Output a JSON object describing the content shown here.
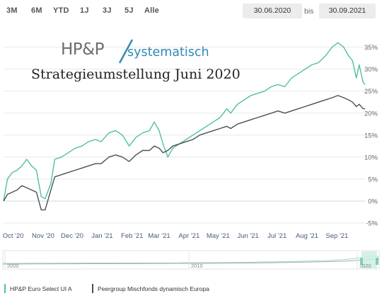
{
  "ranges": [
    "3M",
    "6M",
    "YTD",
    "1J",
    "3J",
    "5J",
    "Alle"
  ],
  "date_from": "30.06.2020",
  "date_sep": "bis",
  "date_to": "30.09.2021",
  "logo": {
    "brand": "HP&P",
    "sub": "systematisch",
    "caption": "Strategieumstellung Juni 2020"
  },
  "colors": {
    "fund": "#4fc0a0",
    "peer": "#4a4f5c",
    "grid": "#e8e8e8"
  },
  "chart_data": {
    "type": "line",
    "title": "",
    "xlabel": "",
    "ylabel": "",
    "x_ticks": [
      "Oct '20",
      "Nov '20",
      "Dec '20",
      "Jan '21",
      "Feb '21",
      "Mar '21",
      "Apr '21",
      "May '21",
      "Jun '21",
      "Jul '21",
      "Aug '21",
      "Sep '21"
    ],
    "y_ticks": [
      "35%",
      "30%",
      "25%",
      "20%",
      "15%",
      "10%",
      "5%",
      "0%",
      "-5%"
    ],
    "ylim": [
      -5,
      38
    ],
    "xlim": [
      "2020-09-21",
      "2021-09-30"
    ],
    "grid": true,
    "series": [
      {
        "name": "HP&P Euro Select UI A",
        "points": [
          [
            "2020-09-21",
            0
          ],
          [
            "2020-09-25",
            5
          ],
          [
            "2020-09-30",
            6.5
          ],
          [
            "2020-10-05",
            7
          ],
          [
            "2020-10-10",
            8
          ],
          [
            "2020-10-15",
            9.5
          ],
          [
            "2020-10-20",
            8
          ],
          [
            "2020-10-25",
            7
          ],
          [
            "2020-10-30",
            1
          ],
          [
            "2020-11-03",
            0.5
          ],
          [
            "2020-11-09",
            4
          ],
          [
            "2020-11-13",
            9.5
          ],
          [
            "2020-11-20",
            10
          ],
          [
            "2020-11-27",
            11
          ],
          [
            "2020-12-04",
            12
          ],
          [
            "2020-12-11",
            12.5
          ],
          [
            "2020-12-18",
            13.5
          ],
          [
            "2020-12-25",
            14
          ],
          [
            "2020-12-31",
            13.5
          ],
          [
            "2021-01-08",
            15.5
          ],
          [
            "2021-01-15",
            16
          ],
          [
            "2021-01-22",
            15
          ],
          [
            "2021-01-29",
            12.5
          ],
          [
            "2021-02-05",
            14.5
          ],
          [
            "2021-02-12",
            15.5
          ],
          [
            "2021-02-19",
            16
          ],
          [
            "2021-02-24",
            18
          ],
          [
            "2021-03-01",
            16
          ],
          [
            "2021-03-05",
            13
          ],
          [
            "2021-03-10",
            10
          ],
          [
            "2021-03-15",
            12
          ],
          [
            "2021-03-22",
            13
          ],
          [
            "2021-03-29",
            14
          ],
          [
            "2021-04-05",
            15
          ],
          [
            "2021-04-12",
            16
          ],
          [
            "2021-04-19",
            17
          ],
          [
            "2021-04-26",
            18
          ],
          [
            "2021-05-03",
            19
          ],
          [
            "2021-05-10",
            21
          ],
          [
            "2021-05-14",
            20
          ],
          [
            "2021-05-21",
            22
          ],
          [
            "2021-05-28",
            23
          ],
          [
            "2021-06-04",
            24
          ],
          [
            "2021-06-11",
            24.5
          ],
          [
            "2021-06-18",
            25
          ],
          [
            "2021-06-25",
            26
          ],
          [
            "2021-07-02",
            26.5
          ],
          [
            "2021-07-09",
            26
          ],
          [
            "2021-07-16",
            28
          ],
          [
            "2021-07-23",
            29
          ],
          [
            "2021-07-30",
            30
          ],
          [
            "2021-08-06",
            31
          ],
          [
            "2021-08-13",
            31.5
          ],
          [
            "2021-08-20",
            33
          ],
          [
            "2021-08-27",
            35
          ],
          [
            "2021-09-02",
            36
          ],
          [
            "2021-09-08",
            35
          ],
          [
            "2021-09-13",
            33
          ],
          [
            "2021-09-17",
            32
          ],
          [
            "2021-09-21",
            28
          ],
          [
            "2021-09-24",
            31
          ],
          [
            "2021-09-28",
            27
          ],
          [
            "2021-09-30",
            26.5
          ]
        ]
      },
      {
        "name": "Peergroup Mischfonds dynamisch Europa",
        "points": [
          [
            "2020-09-21",
            0
          ],
          [
            "2020-09-25",
            1.5
          ],
          [
            "2020-09-30",
            2
          ],
          [
            "2020-10-05",
            2.5
          ],
          [
            "2020-10-10",
            3.5
          ],
          [
            "2020-10-15",
            3
          ],
          [
            "2020-10-20",
            2.5
          ],
          [
            "2020-10-25",
            2
          ],
          [
            "2020-10-30",
            -2
          ],
          [
            "2020-11-03",
            -2
          ],
          [
            "2020-11-09",
            2.5
          ],
          [
            "2020-11-13",
            5.5
          ],
          [
            "2020-11-20",
            6
          ],
          [
            "2020-11-27",
            6.5
          ],
          [
            "2020-12-04",
            7
          ],
          [
            "2020-12-11",
            7.5
          ],
          [
            "2020-12-18",
            8
          ],
          [
            "2020-12-25",
            8.5
          ],
          [
            "2020-12-31",
            8.5
          ],
          [
            "2021-01-08",
            10
          ],
          [
            "2021-01-15",
            10.5
          ],
          [
            "2021-01-22",
            10
          ],
          [
            "2021-01-29",
            9
          ],
          [
            "2021-02-05",
            10.5
          ],
          [
            "2021-02-12",
            11.5
          ],
          [
            "2021-02-19",
            11.5
          ],
          [
            "2021-02-24",
            12.5
          ],
          [
            "2021-03-01",
            12
          ],
          [
            "2021-03-05",
            11
          ],
          [
            "2021-03-10",
            11.5
          ],
          [
            "2021-03-15",
            12.5
          ],
          [
            "2021-03-22",
            13
          ],
          [
            "2021-03-29",
            13.5
          ],
          [
            "2021-04-05",
            14
          ],
          [
            "2021-04-12",
            15
          ],
          [
            "2021-04-19",
            15.5
          ],
          [
            "2021-04-26",
            16
          ],
          [
            "2021-05-03",
            16.5
          ],
          [
            "2021-05-10",
            17
          ],
          [
            "2021-05-14",
            16.5
          ],
          [
            "2021-05-21",
            17.5
          ],
          [
            "2021-05-28",
            18
          ],
          [
            "2021-06-04",
            18.5
          ],
          [
            "2021-06-11",
            19
          ],
          [
            "2021-06-18",
            19.5
          ],
          [
            "2021-06-25",
            20
          ],
          [
            "2021-07-02",
            20.5
          ],
          [
            "2021-07-09",
            20
          ],
          [
            "2021-07-16",
            20.5
          ],
          [
            "2021-07-23",
            21
          ],
          [
            "2021-07-30",
            21.5
          ],
          [
            "2021-08-06",
            22
          ],
          [
            "2021-08-13",
            22.5
          ],
          [
            "2021-08-20",
            23
          ],
          [
            "2021-08-27",
            23.5
          ],
          [
            "2021-09-02",
            24
          ],
          [
            "2021-09-08",
            23.5
          ],
          [
            "2021-09-13",
            23
          ],
          [
            "2021-09-17",
            22.5
          ],
          [
            "2021-09-21",
            21.5
          ],
          [
            "2021-09-24",
            22
          ],
          [
            "2021-09-28",
            21
          ],
          [
            "2021-09-30",
            21
          ]
        ]
      }
    ],
    "legend": [
      "HP&P Euro Select UI A",
      "Peergroup Mischfonds dynamisch Europa"
    ],
    "legend_position": "bottom-left"
  },
  "navigator": {
    "labels": [
      "2000",
      "2010",
      "2020"
    ]
  }
}
